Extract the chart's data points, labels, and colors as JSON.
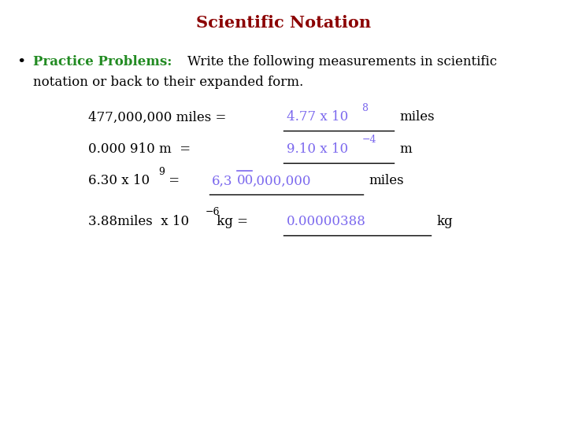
{
  "title": "Scientific Notation",
  "title_color": "#8B0000",
  "label_color": "#228B22",
  "answer_color": "#7B68EE",
  "black": "#000000",
  "bg_color": "#ffffff",
  "title_fs": 15,
  "text_fs": 12,
  "ans_fs": 12,
  "sup_fs": 9
}
